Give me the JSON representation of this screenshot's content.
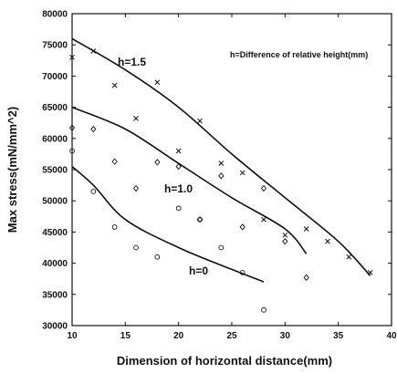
{
  "chart_data": {
    "type": "scatter",
    "xlabel": "Dimension of horizontal distance(mm)",
    "ylabel": "Max stress(mN/mm^2)",
    "note": "h=Difference of relative height(mm)",
    "xlim": [
      10,
      40
    ],
    "ylim": [
      30000,
      80000
    ],
    "x_ticks": [
      "10",
      "15",
      "20",
      "25",
      "30",
      "35",
      "40"
    ],
    "y_ticks": [
      "30000",
      "35000",
      "40000",
      "45000",
      "50000",
      "55000",
      "60000",
      "65000",
      "70000",
      "75000",
      "80000"
    ],
    "grid": false,
    "series": [
      {
        "name": "h=1.5",
        "marker": "x",
        "points": [
          [
            10,
            73000
          ],
          [
            12,
            74000
          ],
          [
            14,
            68500
          ],
          [
            16,
            63200
          ],
          [
            18,
            69000
          ],
          [
            20,
            58000
          ],
          [
            22,
            62800
          ],
          [
            24,
            56000
          ],
          [
            26,
            54500
          ],
          [
            28,
            47000
          ],
          [
            30,
            44500
          ],
          [
            32,
            45500
          ],
          [
            34,
            43500
          ],
          [
            36,
            41000
          ],
          [
            38,
            38500
          ]
        ],
        "fit": [
          [
            10,
            76000
          ],
          [
            15,
            71000
          ],
          [
            20,
            65000
          ],
          [
            25,
            57500
          ],
          [
            30,
            50500
          ],
          [
            35,
            43500
          ],
          [
            38,
            38000
          ]
        ]
      },
      {
        "name": "h=1.0",
        "marker": "diamond",
        "points": [
          [
            10,
            61700
          ],
          [
            12,
            61500
          ],
          [
            14,
            56300
          ],
          [
            16,
            52000
          ],
          [
            18,
            56200
          ],
          [
            20,
            55500
          ],
          [
            22,
            47000
          ],
          [
            24,
            54000
          ],
          [
            26,
            45800
          ],
          [
            28,
            52000
          ],
          [
            30,
            43500
          ],
          [
            32,
            37700
          ]
        ],
        "fit": [
          [
            10,
            65000
          ],
          [
            15,
            61500
          ],
          [
            20,
            56000
          ],
          [
            25,
            50500
          ],
          [
            30,
            45500
          ],
          [
            32,
            41500
          ]
        ]
      },
      {
        "name": "h=0",
        "marker": "circle",
        "points": [
          [
            10,
            58000
          ],
          [
            12,
            51500
          ],
          [
            14,
            45800
          ],
          [
            16,
            42500
          ],
          [
            18,
            41000
          ],
          [
            20,
            48800
          ],
          [
            22,
            47000
          ],
          [
            24,
            42500
          ],
          [
            26,
            38500
          ],
          [
            28,
            32500
          ]
        ],
        "fit": [
          [
            10,
            55500
          ],
          [
            12,
            52500
          ],
          [
            15,
            47000
          ],
          [
            20,
            42500
          ],
          [
            25,
            39000
          ],
          [
            28,
            37000
          ]
        ]
      }
    ]
  }
}
